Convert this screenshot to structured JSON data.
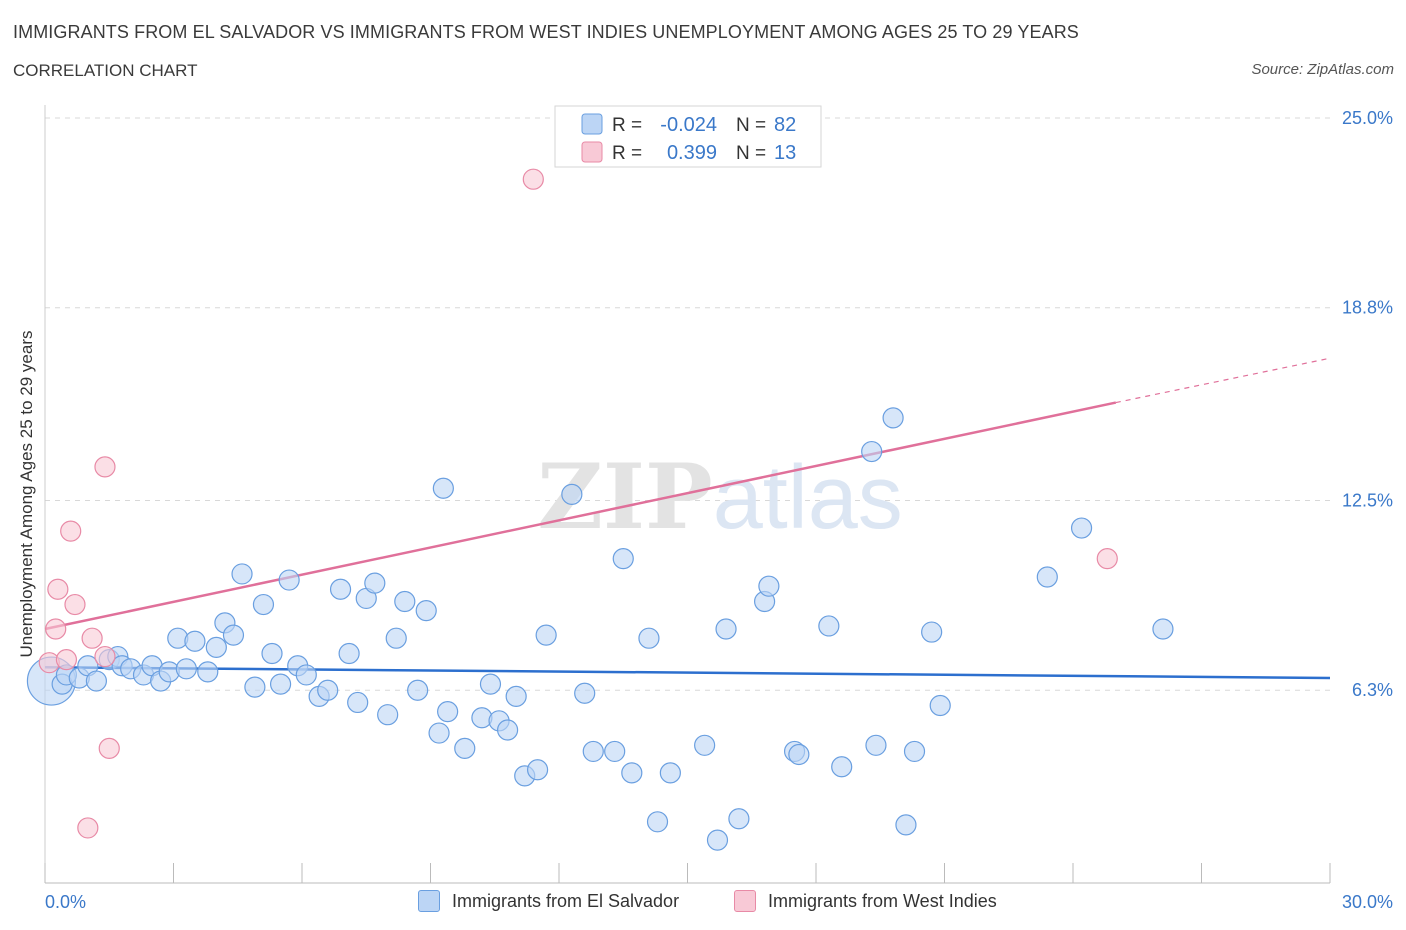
{
  "header": {
    "title": "IMMIGRANTS FROM EL SALVADOR VS IMMIGRANTS FROM WEST INDIES UNEMPLOYMENT AMONG AGES 25 TO 29 YEARS",
    "subtitle": "CORRELATION CHART",
    "source": "Source: ZipAtlas.com"
  },
  "colors": {
    "blue_fill": "#bcd5f5",
    "blue_stroke": "#6a9fe0",
    "blue_line": "#2c6fce",
    "pink_fill": "#f8c9d6",
    "pink_stroke": "#e88aa6",
    "pink_line": "#e0709a",
    "axis_label": "#3a78c9",
    "grid": "#d8d8d8"
  },
  "chart_data": {
    "type": "scatter",
    "ylabel": "Unemployment Among Ages 25 to 29 years",
    "xlim": [
      0,
      30
    ],
    "ylim": [
      0,
      25
    ],
    "x_tick_labels": [
      "0.0%",
      "30.0%"
    ],
    "y_tick_values": [
      6.3,
      12.5,
      18.8,
      25.0
    ],
    "y_tick_labels": [
      "6.3%",
      "12.5%",
      "18.8%",
      "25.0%"
    ],
    "grid": "horizontal dashed",
    "watermark": "ZIPatlas",
    "legend": {
      "placement": "top-center",
      "entries": [
        {
          "r_label": "R =",
          "r_value": "-0.024",
          "n_label": "N =",
          "n_value": "82"
        },
        {
          "r_label": "R =",
          "r_value": "0.399",
          "n_label": "N =",
          "n_value": "13"
        }
      ]
    },
    "series": [
      {
        "name": "Immigrants from El Salvador",
        "color": "blue",
        "trend": {
          "x": [
            0,
            30
          ],
          "y": [
            7.05,
            6.7
          ]
        },
        "points": [
          [
            0.15,
            6.6,
            24
          ],
          [
            0.4,
            6.5,
            10
          ],
          [
            0.5,
            6.8,
            10
          ],
          [
            0.8,
            6.7,
            10
          ],
          [
            1.0,
            7.1,
            10
          ],
          [
            1.2,
            6.6,
            10
          ],
          [
            1.5,
            7.3,
            10
          ],
          [
            1.7,
            7.4,
            10
          ],
          [
            1.8,
            7.1,
            10
          ],
          [
            2.0,
            7.0,
            10
          ],
          [
            2.3,
            6.8,
            10
          ],
          [
            2.5,
            7.1,
            10
          ],
          [
            2.7,
            6.6,
            10
          ],
          [
            2.9,
            6.9,
            10
          ],
          [
            3.1,
            8.0,
            10
          ],
          [
            3.3,
            7.0,
            10
          ],
          [
            3.5,
            7.9,
            10
          ],
          [
            3.8,
            6.9,
            10
          ],
          [
            4.0,
            7.7,
            10
          ],
          [
            4.2,
            8.5,
            10
          ],
          [
            4.4,
            8.1,
            10
          ],
          [
            4.6,
            10.1,
            10
          ],
          [
            4.9,
            6.4,
            10
          ],
          [
            5.1,
            9.1,
            10
          ],
          [
            5.3,
            7.5,
            10
          ],
          [
            5.5,
            6.5,
            10
          ],
          [
            5.7,
            9.9,
            10
          ],
          [
            5.9,
            7.1,
            10
          ],
          [
            6.1,
            6.8,
            10
          ],
          [
            6.4,
            6.1,
            10
          ],
          [
            6.6,
            6.3,
            10
          ],
          [
            6.9,
            9.6,
            10
          ],
          [
            7.1,
            7.5,
            10
          ],
          [
            7.3,
            5.9,
            10
          ],
          [
            7.5,
            9.3,
            10
          ],
          [
            7.7,
            9.8,
            10
          ],
          [
            8.0,
            5.5,
            10
          ],
          [
            8.2,
            8.0,
            10
          ],
          [
            8.4,
            9.2,
            10
          ],
          [
            8.7,
            6.3,
            10
          ],
          [
            8.9,
            8.9,
            10
          ],
          [
            9.2,
            4.9,
            10
          ],
          [
            9.3,
            12.9,
            10
          ],
          [
            9.4,
            5.6,
            10
          ],
          [
            9.8,
            4.4,
            10
          ],
          [
            10.2,
            5.4,
            10
          ],
          [
            10.4,
            6.5,
            10
          ],
          [
            10.6,
            5.3,
            10
          ],
          [
            10.8,
            5.0,
            10
          ],
          [
            11.0,
            6.1,
            10
          ],
          [
            11.2,
            3.5,
            10
          ],
          [
            11.5,
            3.7,
            10
          ],
          [
            11.7,
            8.1,
            10
          ],
          [
            12.3,
            12.7,
            10
          ],
          [
            12.6,
            6.2,
            10
          ],
          [
            12.8,
            4.3,
            10
          ],
          [
            13.3,
            4.3,
            10
          ],
          [
            13.5,
            10.6,
            10
          ],
          [
            13.7,
            3.6,
            10
          ],
          [
            14.1,
            8.0,
            10
          ],
          [
            14.3,
            2.0,
            10
          ],
          [
            14.6,
            3.6,
            10
          ],
          [
            15.4,
            4.5,
            10
          ],
          [
            15.7,
            1.4,
            10
          ],
          [
            15.9,
            8.3,
            10
          ],
          [
            16.2,
            2.1,
            10
          ],
          [
            16.8,
            9.2,
            10
          ],
          [
            16.9,
            9.7,
            10
          ],
          [
            17.5,
            4.3,
            10
          ],
          [
            17.6,
            4.2,
            10
          ],
          [
            18.3,
            8.4,
            10
          ],
          [
            18.6,
            3.8,
            10
          ],
          [
            19.3,
            14.1,
            10
          ],
          [
            19.4,
            4.5,
            10
          ],
          [
            19.8,
            15.2,
            10
          ],
          [
            20.1,
            1.9,
            10
          ],
          [
            20.3,
            4.3,
            10
          ],
          [
            20.7,
            8.2,
            10
          ],
          [
            20.9,
            5.8,
            10
          ],
          [
            23.4,
            10.0,
            10
          ],
          [
            24.2,
            11.6,
            10
          ],
          [
            26.1,
            8.3,
            10
          ]
        ]
      },
      {
        "name": "Immigrants from West Indies",
        "color": "pink",
        "trend": {
          "x": [
            0,
            25
          ],
          "y": [
            8.3,
            15.7
          ],
          "dash_to_x": 30,
          "dash_to_y": 17.15
        },
        "points": [
          [
            0.1,
            7.2,
            10
          ],
          [
            0.25,
            8.3,
            10
          ],
          [
            0.3,
            9.6,
            10
          ],
          [
            0.5,
            7.3,
            10
          ],
          [
            0.6,
            11.5,
            10
          ],
          [
            0.7,
            9.1,
            10
          ],
          [
            1.0,
            1.8,
            10
          ],
          [
            1.1,
            8.0,
            10
          ],
          [
            1.4,
            7.4,
            10
          ],
          [
            1.4,
            13.6,
            10
          ],
          [
            1.5,
            4.4,
            10
          ],
          [
            11.4,
            23.0,
            10
          ],
          [
            24.8,
            10.6,
            10
          ]
        ]
      }
    ]
  },
  "bottom_legend": {
    "items": [
      "Immigrants from El Salvador",
      "Immigrants from West Indies"
    ]
  }
}
